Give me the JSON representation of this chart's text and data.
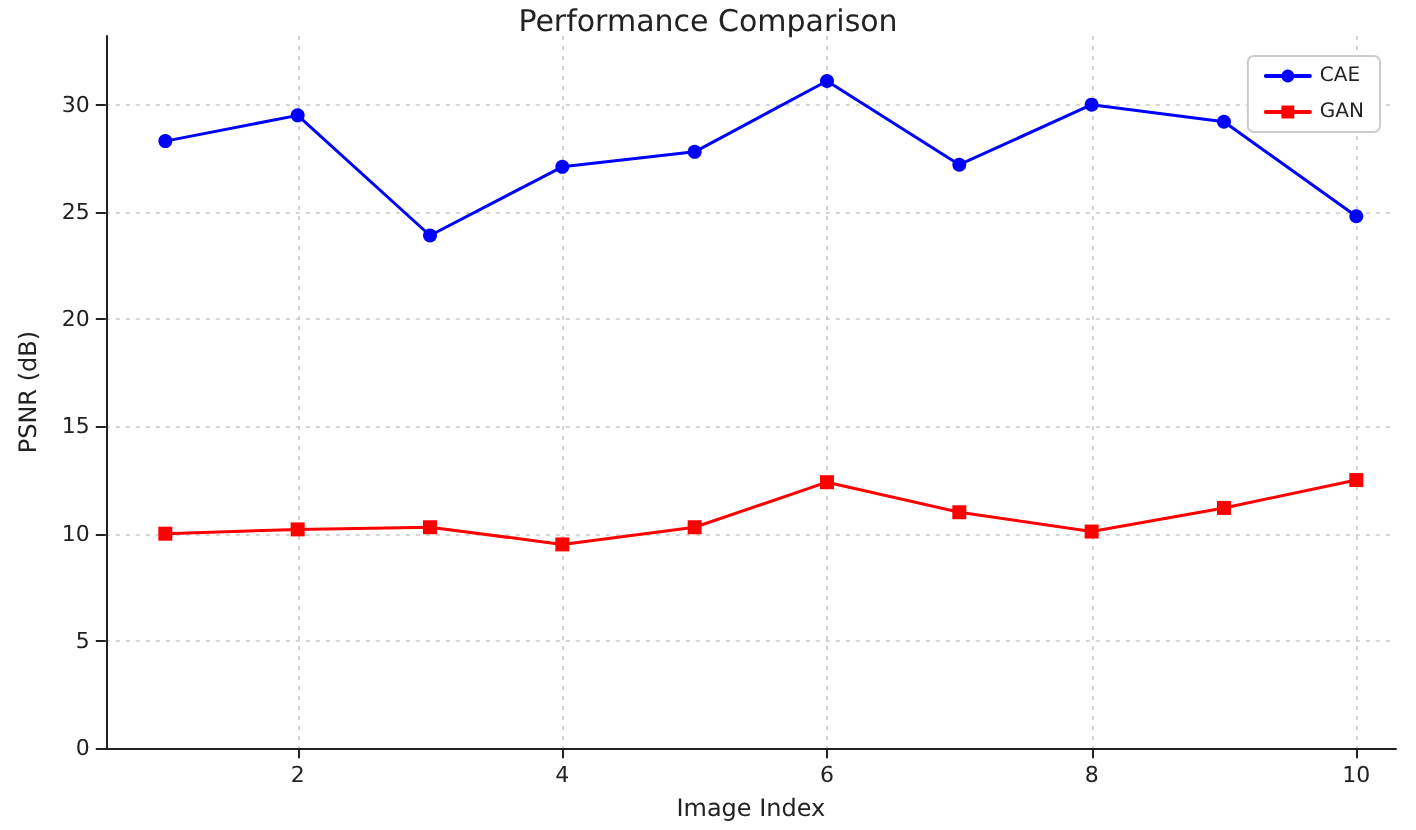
{
  "chart_data": {
    "type": "line",
    "title": "Performance Comparison",
    "xlabel": "Image Index",
    "ylabel": "PSNR (dB)",
    "x": [
      1,
      2,
      3,
      4,
      5,
      6,
      7,
      8,
      9,
      10
    ],
    "series": [
      {
        "name": "CAE",
        "color": "#0000ff",
        "marker": "circle",
        "values": [
          28.3,
          29.5,
          23.9,
          27.1,
          27.8,
          31.1,
          27.2,
          30.0,
          29.2,
          24.8
        ]
      },
      {
        "name": "GAN",
        "color": "#ff0000",
        "marker": "square",
        "values": [
          10.0,
          10.2,
          10.3,
          9.5,
          10.3,
          12.4,
          11.0,
          10.1,
          11.2,
          12.5
        ]
      }
    ],
    "xlim": [
      0.55,
      10.3
    ],
    "xticks": [
      2,
      4,
      6,
      8,
      10
    ],
    "ylim": [
      0,
      33.2
    ],
    "yticks": [
      0,
      5,
      10,
      15,
      20,
      25,
      30
    ],
    "grid": true,
    "legend": "top right",
    "line_style": "solid"
  }
}
